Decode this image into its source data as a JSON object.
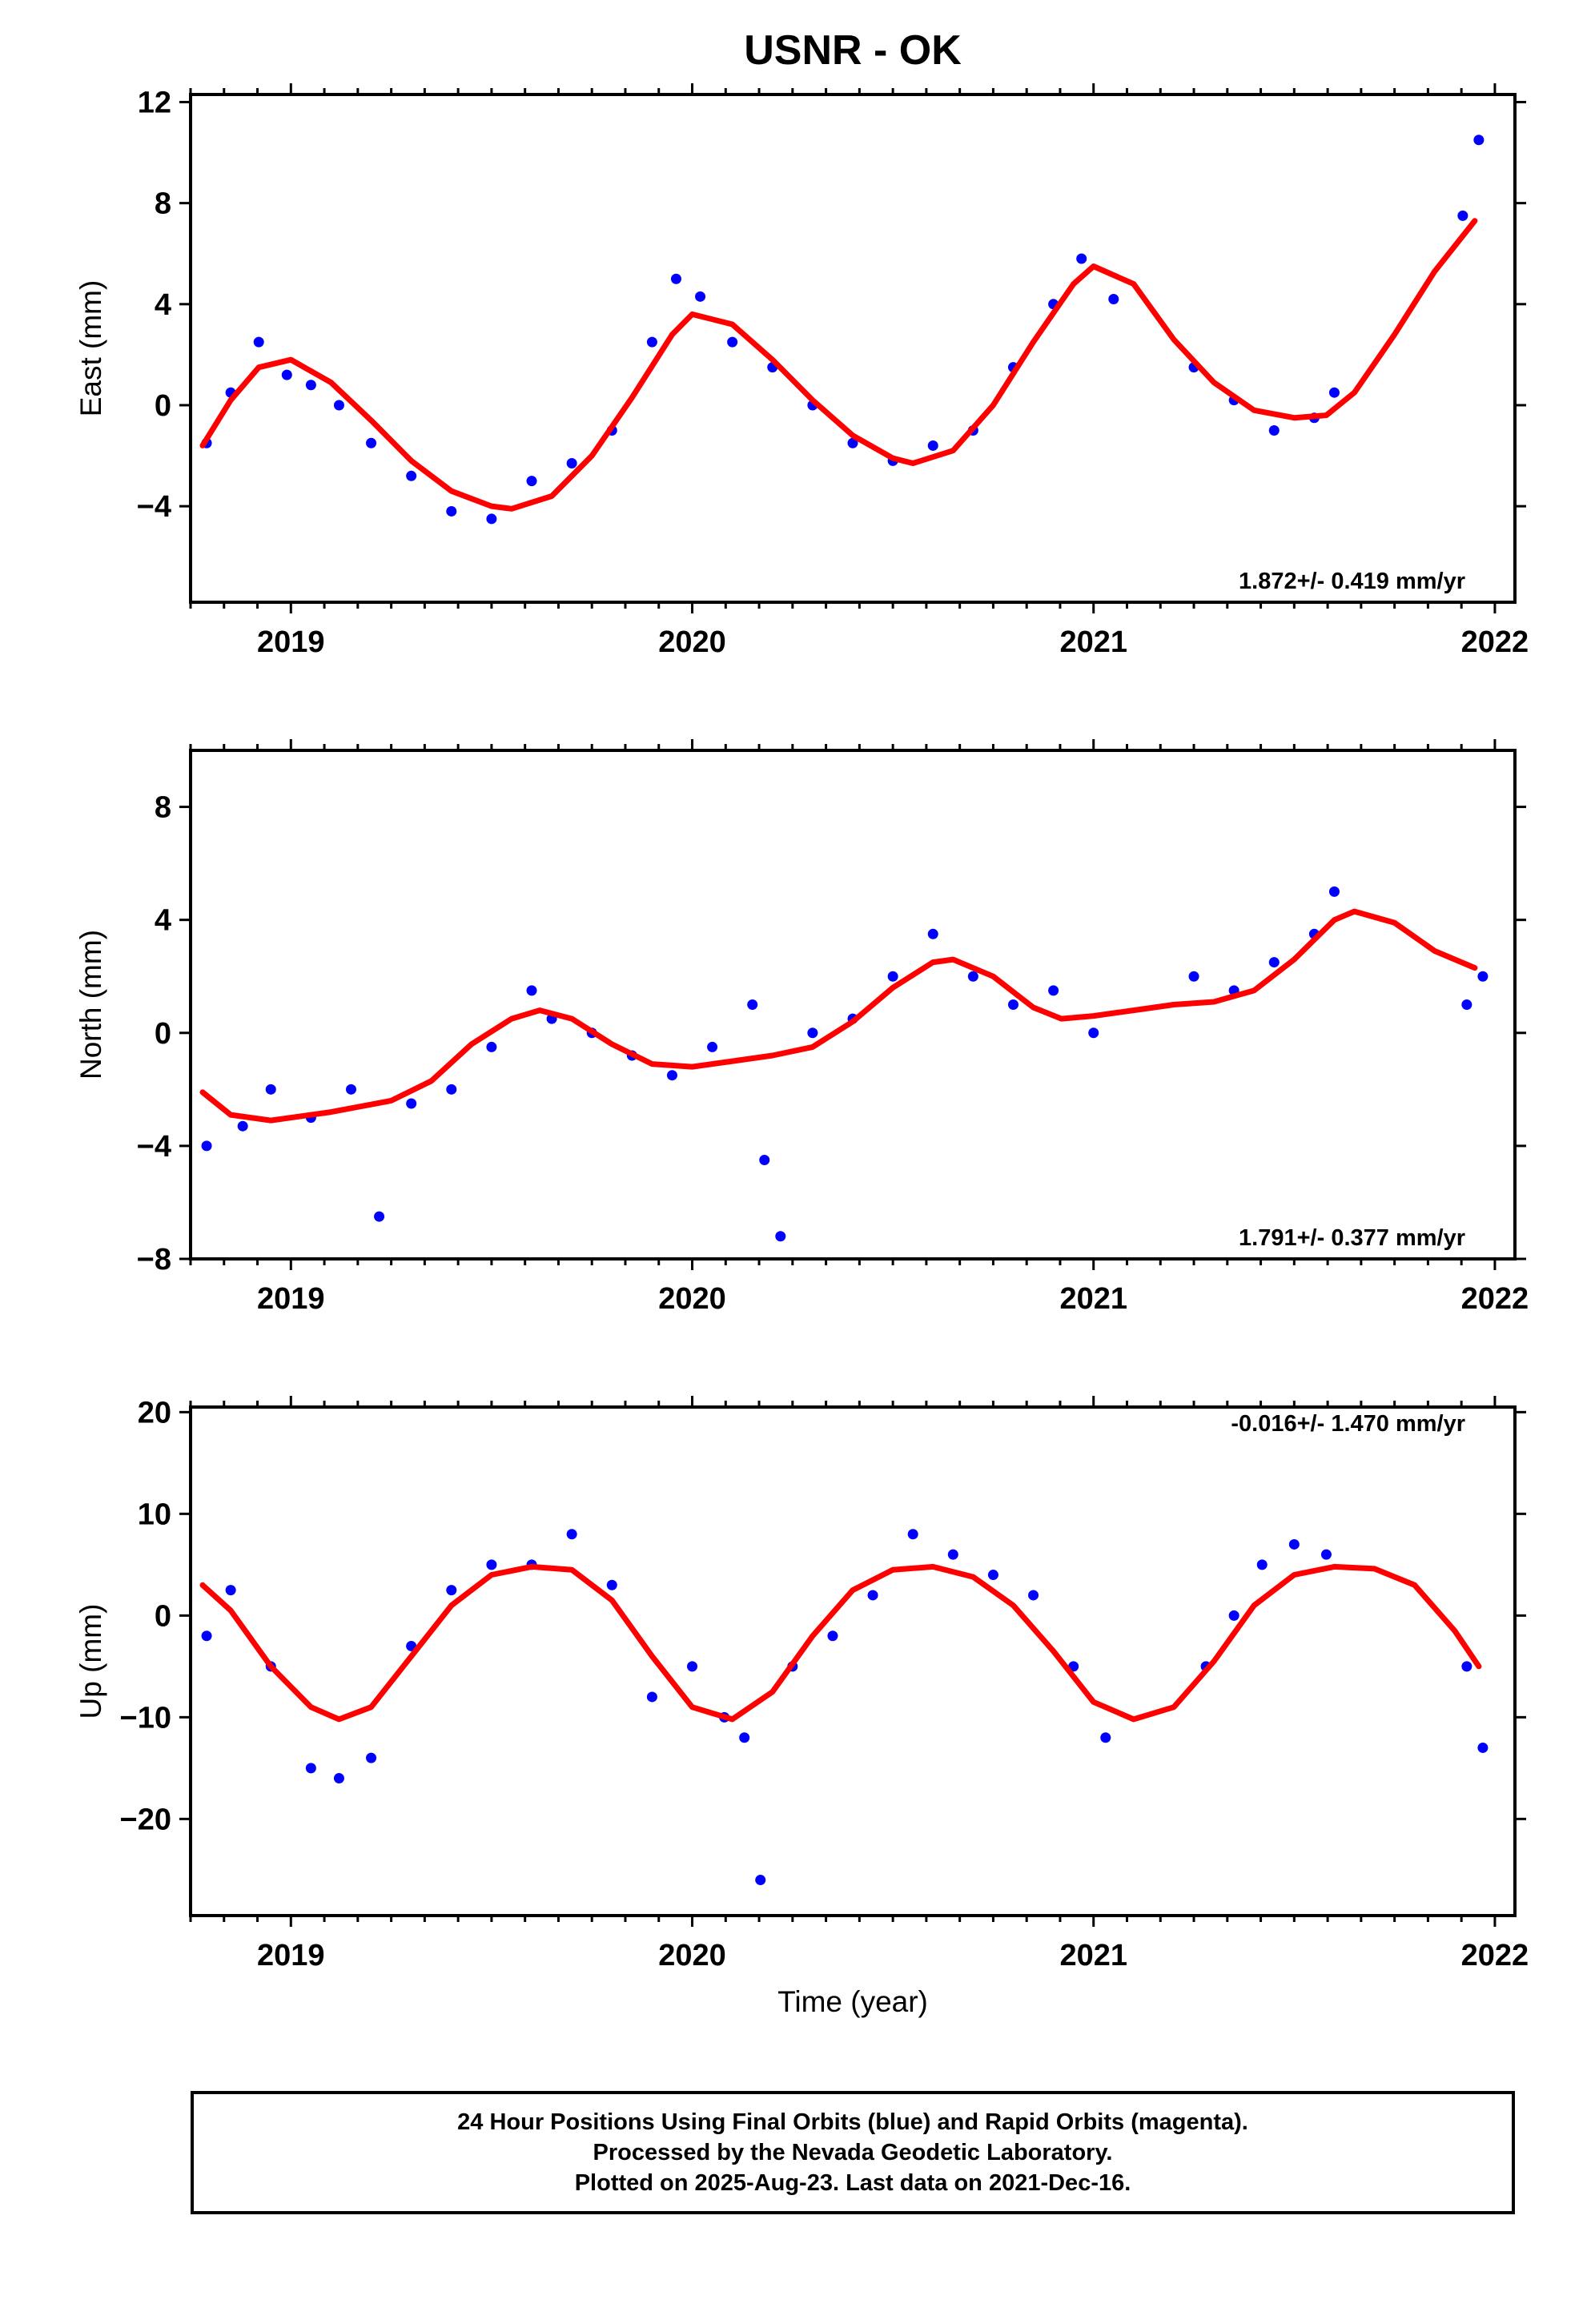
{
  "title": "USNR - OK",
  "colors": {
    "final_orbits": "#0000ff",
    "fit": "#ff0000",
    "frame": "#000000"
  },
  "xlabel": "Time (year)",
  "chart_data": [
    {
      "type": "scatter",
      "ylabel": "East (mm)",
      "rate_label": "1.872+/- 0.419 mm/yr",
      "xlim": [
        2018.75,
        2022.05
      ],
      "ylim": [
        -7.8,
        12.3
      ],
      "yticks": [
        -4,
        0,
        4,
        8,
        12
      ],
      "xticks": [
        2019,
        2020,
        2021,
        2022
      ],
      "series": [
        {
          "x": [
            2018.79,
            2018.85,
            2018.92,
            2018.99,
            2019.05,
            2019.12,
            2019.2,
            2019.3,
            2019.4,
            2019.5,
            2019.6,
            2019.7,
            2019.8,
            2019.9,
            2019.96,
            2020.02,
            2020.1,
            2020.2,
            2020.3,
            2020.4,
            2020.5,
            2020.6,
            2020.7,
            2020.8,
            2020.9,
            2020.97,
            2021.05,
            2021.25,
            2021.35,
            2021.45,
            2021.55,
            2021.6,
            2021.92,
            2021.96
          ],
          "y": [
            -1.5,
            0.5,
            2.5,
            1.2,
            0.8,
            0.0,
            -1.5,
            -2.8,
            -4.2,
            -4.5,
            -3.0,
            -2.3,
            -1.0,
            2.5,
            5.0,
            4.3,
            2.5,
            1.5,
            0.0,
            -1.5,
            -2.2,
            -1.6,
            -1.0,
            1.5,
            4.0,
            5.8,
            4.2,
            1.5,
            0.2,
            -1.0,
            -0.5,
            0.5,
            7.5,
            10.5
          ]
        }
      ],
      "fit": {
        "x": [
          2018.78,
          2018.85,
          2018.92,
          2019.0,
          2019.1,
          2019.2,
          2019.3,
          2019.4,
          2019.5,
          2019.55,
          2019.65,
          2019.75,
          2019.85,
          2019.95,
          2020.0,
          2020.1,
          2020.2,
          2020.3,
          2020.4,
          2020.5,
          2020.55,
          2020.65,
          2020.75,
          2020.85,
          2020.95,
          2021.0,
          2021.1,
          2021.2,
          2021.3,
          2021.4,
          2021.5,
          2021.58,
          2021.65,
          2021.75,
          2021.85,
          2021.95
        ],
        "y": [
          -1.6,
          0.2,
          1.5,
          1.8,
          0.9,
          -0.6,
          -2.2,
          -3.4,
          -4.0,
          -4.1,
          -3.6,
          -2.0,
          0.3,
          2.8,
          3.6,
          3.2,
          1.8,
          0.2,
          -1.2,
          -2.1,
          -2.3,
          -1.8,
          0.0,
          2.5,
          4.8,
          5.5,
          4.8,
          2.6,
          0.9,
          -0.2,
          -0.5,
          -0.4,
          0.5,
          2.8,
          5.3,
          7.3
        ]
      }
    },
    {
      "type": "scatter",
      "ylabel": "North (mm)",
      "rate_label": "1.791+/- 0.377 mm/yr",
      "xlim": [
        2018.75,
        2022.05
      ],
      "ylim": [
        -8.0,
        10.0
      ],
      "yticks": [
        -8,
        -4,
        0,
        4,
        8
      ],
      "xticks": [
        2019,
        2020,
        2021,
        2022
      ],
      "series": [
        {
          "x": [
            2018.79,
            2018.88,
            2018.95,
            2019.05,
            2019.15,
            2019.22,
            2019.3,
            2019.4,
            2019.5,
            2019.6,
            2019.65,
            2019.75,
            2019.85,
            2019.95,
            2020.05,
            2020.15,
            2020.18,
            2020.22,
            2020.3,
            2020.4,
            2020.5,
            2020.6,
            2020.7,
            2020.8,
            2020.9,
            2021.0,
            2021.25,
            2021.35,
            2021.45,
            2021.55,
            2021.6,
            2021.93,
            2021.97
          ],
          "y": [
            -4.0,
            -3.3,
            -2.0,
            -3.0,
            -2.0,
            -6.5,
            -2.5,
            -2.0,
            -0.5,
            1.5,
            0.5,
            0.0,
            -0.8,
            -1.5,
            -0.5,
            1.0,
            -4.5,
            -7.2,
            0.0,
            0.5,
            2.0,
            3.5,
            2.0,
            1.0,
            1.5,
            0.0,
            2.0,
            1.5,
            2.5,
            3.5,
            5.0,
            1.0,
            2.0
          ]
        }
      ],
      "fit": {
        "x": [
          2018.78,
          2018.85,
          2018.95,
          2019.1,
          2019.25,
          2019.35,
          2019.45,
          2019.55,
          2019.62,
          2019.7,
          2019.8,
          2019.9,
          2020.0,
          2020.1,
          2020.2,
          2020.3,
          2020.4,
          2020.5,
          2020.6,
          2020.65,
          2020.75,
          2020.85,
          2020.92,
          2021.0,
          2021.1,
          2021.2,
          2021.3,
          2021.4,
          2021.5,
          2021.6,
          2021.65,
          2021.75,
          2021.85,
          2021.95
        ],
        "y": [
          -2.1,
          -2.9,
          -3.1,
          -2.8,
          -2.4,
          -1.7,
          -0.4,
          0.5,
          0.8,
          0.5,
          -0.4,
          -1.1,
          -1.2,
          -1.0,
          -0.8,
          -0.5,
          0.4,
          1.6,
          2.5,
          2.6,
          2.0,
          0.9,
          0.5,
          0.6,
          0.8,
          1.0,
          1.1,
          1.5,
          2.6,
          4.0,
          4.3,
          3.9,
          2.9,
          2.3
        ]
      }
    },
    {
      "type": "scatter",
      "ylabel": "Up (mm)",
      "rate_label": "-0.016+/- 1.470 mm/yr",
      "xlim": [
        2018.75,
        2022.05
      ],
      "ylim": [
        -29.5,
        20.5
      ],
      "yticks": [
        -20,
        -10,
        0,
        10,
        20
      ],
      "xticks": [
        2019,
        2020,
        2021,
        2022
      ],
      "series": [
        {
          "x": [
            2018.79,
            2018.85,
            2018.95,
            2019.05,
            2019.12,
            2019.2,
            2019.3,
            2019.4,
            2019.5,
            2019.6,
            2019.7,
            2019.8,
            2019.9,
            2020.0,
            2020.08,
            2020.13,
            2020.17,
            2020.25,
            2020.35,
            2020.45,
            2020.55,
            2020.65,
            2020.75,
            2020.85,
            2020.95,
            2021.03,
            2021.28,
            2021.35,
            2021.42,
            2021.5,
            2021.58,
            2021.93,
            2021.97
          ],
          "y": [
            -2.0,
            2.5,
            -5.0,
            -15.0,
            -16.0,
            -14.0,
            -3.0,
            2.5,
            5.0,
            5.0,
            8.0,
            3.0,
            -8.0,
            -5.0,
            -10.0,
            -12.0,
            -26.0,
            -5.0,
            -2.0,
            2.0,
            8.0,
            6.0,
            4.0,
            2.0,
            -5.0,
            -12.0,
            -5.0,
            0.0,
            5.0,
            7.0,
            6.0,
            -5.0,
            -13.0
          ]
        }
      ],
      "fit": {
        "x": [
          2018.78,
          2018.85,
          2018.95,
          2019.05,
          2019.12,
          2019.2,
          2019.3,
          2019.4,
          2019.5,
          2019.6,
          2019.7,
          2019.8,
          2019.9,
          2020.0,
          2020.1,
          2020.2,
          2020.3,
          2020.4,
          2020.5,
          2020.6,
          2020.7,
          2020.8,
          2020.9,
          2021.0,
          2021.1,
          2021.2,
          2021.3,
          2021.4,
          2021.5,
          2021.6,
          2021.7,
          2021.8,
          2021.9,
          2021.96
        ],
        "y": [
          3.0,
          0.5,
          -5.0,
          -9.0,
          -10.2,
          -9.0,
          -4.0,
          1.0,
          4.0,
          4.8,
          4.5,
          1.5,
          -4.0,
          -9.0,
          -10.2,
          -7.5,
          -2.0,
          2.5,
          4.5,
          4.8,
          3.8,
          1.0,
          -3.5,
          -8.5,
          -10.2,
          -9.0,
          -4.5,
          1.0,
          4.0,
          4.8,
          4.6,
          3.0,
          -1.5,
          -5.0
        ]
      }
    }
  ],
  "footer": {
    "line1": "24 Hour Positions Using Final Orbits (blue) and Rapid Orbits (magenta).",
    "line2": "Processed by the Nevada Geodetic Laboratory.",
    "line3": "Plotted on 2025-Aug-23. Last data on 2021-Dec-16."
  }
}
